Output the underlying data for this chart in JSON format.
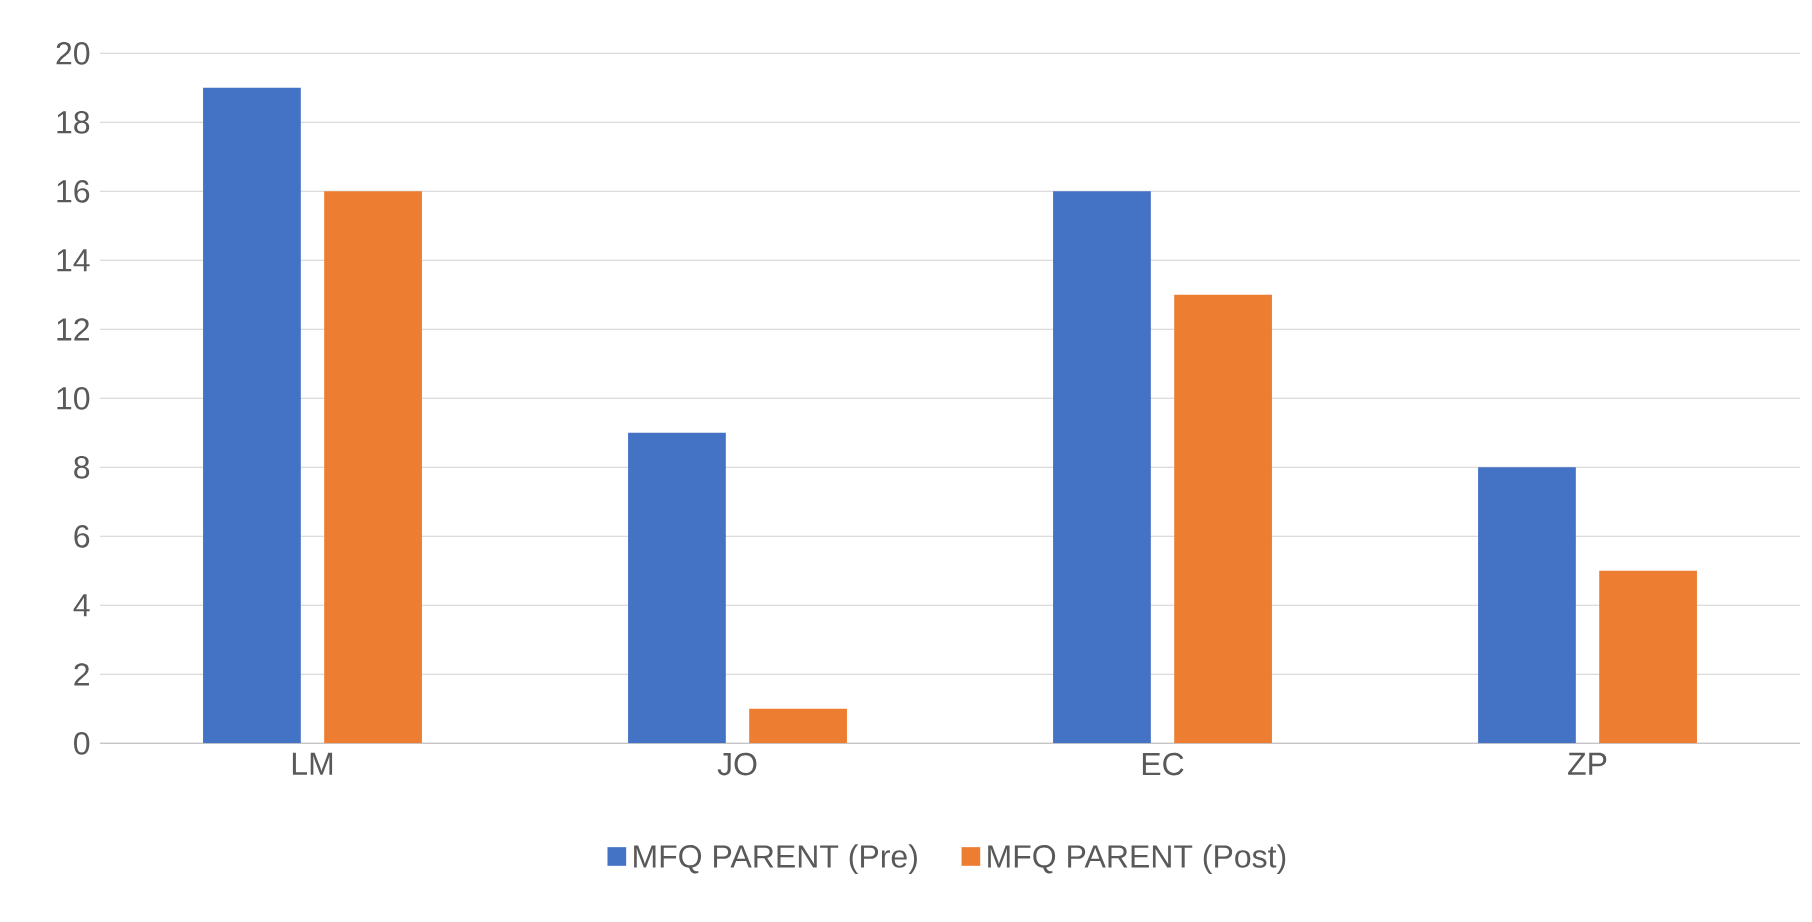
{
  "chart_data": {
    "type": "bar",
    "categories": [
      "LM",
      "JO",
      "EC",
      "ZP"
    ],
    "series": [
      {
        "name": "MFQ PARENT (Pre)",
        "color": "#4472c4",
        "values": [
          19,
          9,
          16,
          8
        ]
      },
      {
        "name": "MFQ PARENT (Post)",
        "color": "#ed7d31",
        "values": [
          16,
          1,
          13,
          5
        ]
      }
    ],
    "ylim": [
      0,
      20
    ],
    "yticks": [
      0,
      2,
      4,
      6,
      8,
      10,
      12,
      14,
      16,
      18,
      20
    ],
    "grid": "y",
    "legend": "bottom"
  }
}
